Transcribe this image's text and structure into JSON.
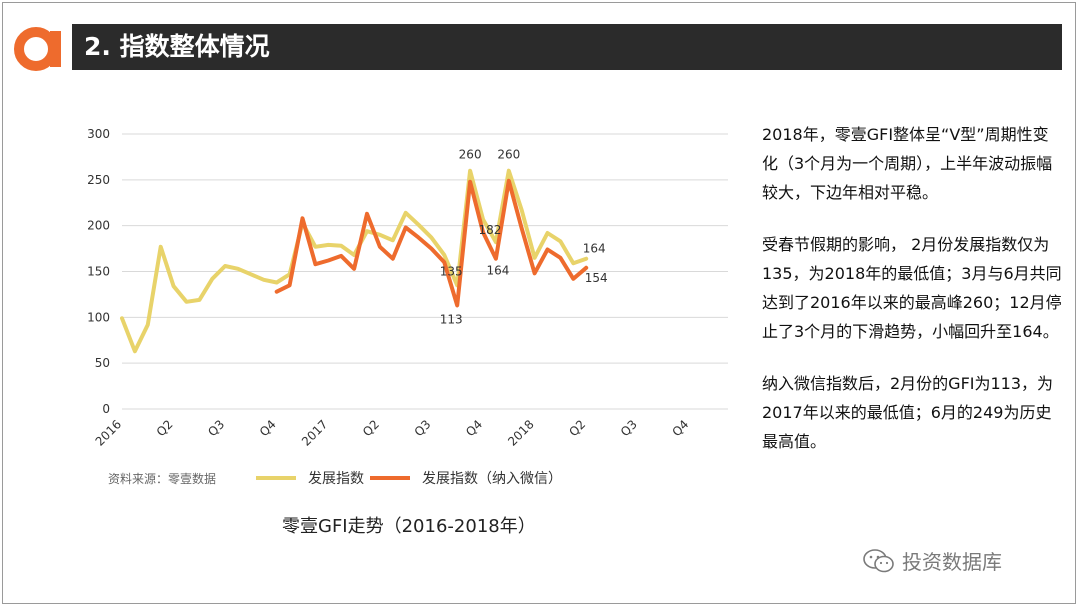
{
  "header": {
    "title": "2. 指数整体情况"
  },
  "brand": {
    "logo_icon": "letter-a-logo",
    "accent_color": "#ee6b2d"
  },
  "chart_data": {
    "type": "line",
    "title": "零壹GFI走势（2016-2018年）",
    "source_label": "资料来源：零壹数据",
    "ylim": [
      0,
      300
    ],
    "yticks": [
      0,
      50,
      100,
      150,
      200,
      250,
      300
    ],
    "x_tick_labels": [
      {
        "i": 0,
        "label": "2016"
      },
      {
        "i": 4,
        "label": "Q2"
      },
      {
        "i": 8,
        "label": "Q3"
      },
      {
        "i": 12,
        "label": "Q4"
      },
      {
        "i": 16,
        "label": "2017"
      },
      {
        "i": 20,
        "label": "Q2"
      },
      {
        "i": 24,
        "label": "Q3"
      },
      {
        "i": 28,
        "label": "Q4"
      },
      {
        "i": 32,
        "label": "2018"
      },
      {
        "i": 36,
        "label": "Q2"
      },
      {
        "i": 40,
        "label": "Q3"
      },
      {
        "i": 44,
        "label": "Q4"
      }
    ],
    "x_count": 48,
    "grid": true,
    "legend_position": "bottom",
    "series": [
      {
        "name": "发展指数",
        "color": "#e8d36a",
        "values": [
          {
            "i": 0,
            "y": 99
          },
          {
            "i": 1,
            "y": 63
          },
          {
            "i": 2,
            "y": 92
          },
          {
            "i": 3,
            "y": 177
          },
          {
            "i": 4,
            "y": 134
          },
          {
            "i": 5,
            "y": 117
          },
          {
            "i": 6,
            "y": 119
          },
          {
            "i": 7,
            "y": 142
          },
          {
            "i": 8,
            "y": 156
          },
          {
            "i": 9,
            "y": 153
          },
          {
            "i": 10,
            "y": 147
          },
          {
            "i": 11,
            "y": 141
          },
          {
            "i": 12,
            "y": 138
          },
          {
            "i": 13,
            "y": 147
          },
          {
            "i": 14,
            "y": 203
          },
          {
            "i": 15,
            "y": 177
          },
          {
            "i": 16,
            "y": 179
          },
          {
            "i": 17,
            "y": 178
          },
          {
            "i": 18,
            "y": 168
          },
          {
            "i": 19,
            "y": 194
          },
          {
            "i": 20,
            "y": 190
          },
          {
            "i": 21,
            "y": 184
          },
          {
            "i": 22,
            "y": 214
          },
          {
            "i": 23,
            "y": 201
          },
          {
            "i": 24,
            "y": 187
          },
          {
            "i": 25,
            "y": 168
          },
          {
            "i": 26,
            "y": 135
          },
          {
            "i": 27,
            "y": 260
          },
          {
            "i": 28,
            "y": 207
          },
          {
            "i": 29,
            "y": 182
          },
          {
            "i": 30,
            "y": 260
          },
          {
            "i": 31,
            "y": 217
          },
          {
            "i": 32,
            "y": 165
          },
          {
            "i": 33,
            "y": 192
          },
          {
            "i": 34,
            "y": 183
          },
          {
            "i": 35,
            "y": 159
          },
          {
            "i": 36,
            "y": 164
          }
        ]
      },
      {
        "name": "发展指数（纳入微信）",
        "color": "#ee6b2d",
        "values": [
          {
            "i": 12,
            "y": 128
          },
          {
            "i": 13,
            "y": 135
          },
          {
            "i": 14,
            "y": 208
          },
          {
            "i": 15,
            "y": 158
          },
          {
            "i": 16,
            "y": 162
          },
          {
            "i": 17,
            "y": 167
          },
          {
            "i": 18,
            "y": 153
          },
          {
            "i": 19,
            "y": 213
          },
          {
            "i": 20,
            "y": 177
          },
          {
            "i": 21,
            "y": 164
          },
          {
            "i": 22,
            "y": 198
          },
          {
            "i": 23,
            "y": 187
          },
          {
            "i": 24,
            "y": 175
          },
          {
            "i": 25,
            "y": 160
          },
          {
            "i": 26,
            "y": 113
          },
          {
            "i": 27,
            "y": 248
          },
          {
            "i": 28,
            "y": 193
          },
          {
            "i": 29,
            "y": 164
          },
          {
            "i": 30,
            "y": 249
          },
          {
            "i": 31,
            "y": 197
          },
          {
            "i": 32,
            "y": 148
          },
          {
            "i": 33,
            "y": 174
          },
          {
            "i": 34,
            "y": 165
          },
          {
            "i": 35,
            "y": 142
          },
          {
            "i": 36,
            "y": 154
          }
        ]
      }
    ],
    "annotations": [
      {
        "text": "260",
        "i": 27,
        "y": 260,
        "dy": -14
      },
      {
        "text": "260",
        "i": 30,
        "y": 260,
        "dy": -14
      },
      {
        "text": "182",
        "i": 29,
        "y": 182,
        "dy": 0
      },
      {
        "text": "135",
        "i": 26,
        "y": 135,
        "dy": 0
      },
      {
        "text": "164",
        "i": 29,
        "y": 164,
        "dy": 0
      },
      {
        "text": "113",
        "i": 26,
        "y": 113,
        "dy": 0
      },
      {
        "text": "164",
        "i": 36,
        "y": 164,
        "dy": 0
      },
      {
        "text": "154",
        "i": 36,
        "y": 154,
        "dy": 0
      }
    ]
  },
  "commentary": {
    "p1": "2018年，零壹GFI整体呈“V型”周期性变化（3个月为一个周期），上半年波动振幅较大，下边年相对平稳。",
    "p2": "受春节假期的影响， 2月份发展指数仅为135，为2018年的最低值；3月与6月共同达到了2016年以来的最高峰260；12月停止了3个月的下滑趋势，小幅回升至164。",
    "p3": "纳入微信指数后，2月份的GFI为113，为2017年以来的最低值；6月的249为历史最高值。"
  },
  "watermark": {
    "icon": "wechat-icon",
    "text": "投资数据库"
  }
}
